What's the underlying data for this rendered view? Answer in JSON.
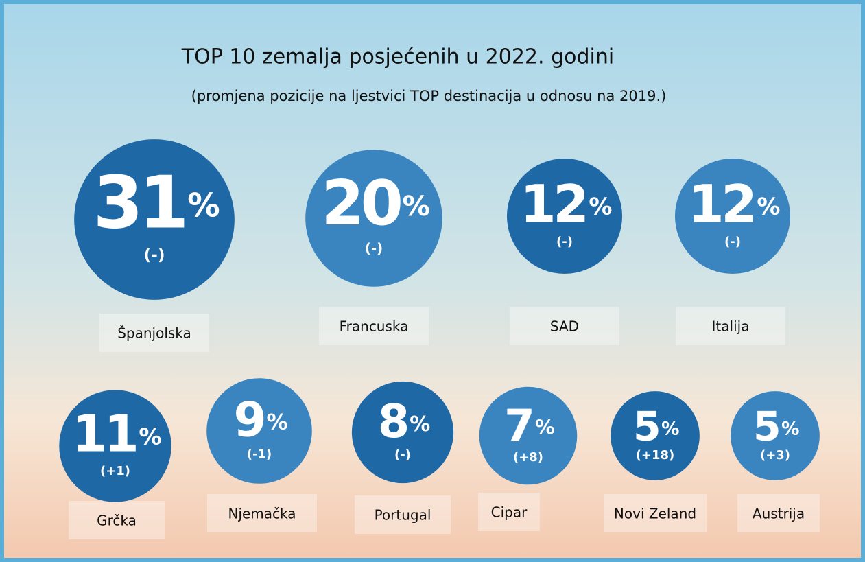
{
  "chart_data": {
    "type": "bubble",
    "title": "TOP 10 zemalja posjećenih u 2022. godini",
    "subtitle": "(promjena pozicije na ljestvici TOP destinacija u odnosu na 2019.)",
    "categories": [
      "Španjolska",
      "Francuska",
      "SAD",
      "Italija",
      "Grčka",
      "Njemačka",
      "Portugal",
      "Cipar",
      "Novi Zeland",
      "Austrija"
    ],
    "values": [
      31,
      20,
      12,
      12,
      11,
      9,
      8,
      7,
      5,
      5
    ],
    "value_labels": [
      "31%",
      "20%",
      "12%",
      "12%",
      "11%",
      "9%",
      "8%",
      "7%",
      "5%",
      "5%"
    ],
    "changes": [
      "(-)",
      "(-)",
      "(-)",
      "(-)",
      "(+1)",
      "(-1)",
      "(-)",
      "(+8)",
      "(+18)",
      "(+3)"
    ],
    "colors": [
      "#1f68a6",
      "#3a85bf",
      "#1f68a6",
      "#3a85bf",
      "#1f68a6",
      "#3a85bf",
      "#1f68a6",
      "#3a85bf",
      "#1f68a6",
      "#3a85bf"
    ]
  }
}
